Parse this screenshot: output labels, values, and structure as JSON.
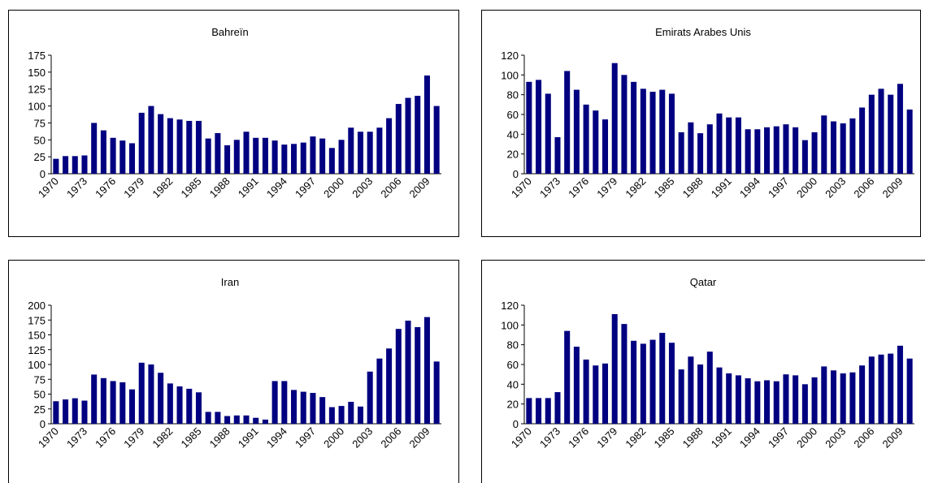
{
  "chart_data": [
    {
      "type": "bar",
      "title": "Bahreïn",
      "color": "#000080",
      "categories": [
        "1970",
        null,
        null,
        "1973",
        null,
        null,
        "1976",
        null,
        null,
        "1979",
        null,
        null,
        "1982",
        null,
        null,
        "1985",
        null,
        null,
        "1988",
        null,
        null,
        "1991",
        null,
        null,
        "1994",
        null,
        null,
        "1997",
        null,
        null,
        "2000",
        null,
        null,
        "2003",
        null,
        null,
        "2006",
        null,
        null,
        "2009",
        null
      ],
      "values": [
        22,
        26,
        26,
        27,
        75,
        64,
        53,
        49,
        45,
        90,
        100,
        88,
        82,
        80,
        78,
        78,
        52,
        60,
        42,
        50,
        62,
        53,
        53,
        49,
        43,
        44,
        46,
        55,
        52,
        38,
        50,
        68,
        62,
        62,
        68,
        82,
        103,
        112,
        115,
        145,
        100
      ],
      "ylim": [
        0,
        175
      ],
      "yticks": [
        0,
        25,
        50,
        75,
        100,
        125,
        150,
        175
      ]
    },
    {
      "type": "bar",
      "title": "Emirats Arabes Unis",
      "color": "#000080",
      "categories": [
        "1970",
        null,
        null,
        "1973",
        null,
        null,
        "1976",
        null,
        null,
        "1979",
        null,
        null,
        "1982",
        null,
        null,
        "1985",
        null,
        null,
        "1988",
        null,
        null,
        "1991",
        null,
        null,
        "1994",
        null,
        null,
        "1997",
        null,
        null,
        "2000",
        null,
        null,
        "2003",
        null,
        null,
        "2006",
        null,
        null,
        "2009",
        null
      ],
      "values": [
        93,
        95,
        81,
        37,
        104,
        85,
        70,
        64,
        55,
        112,
        100,
        93,
        86,
        83,
        85,
        81,
        42,
        52,
        41,
        50,
        61,
        57,
        57,
        45,
        45,
        47,
        48,
        50,
        47,
        34,
        42,
        59,
        53,
        51,
        56,
        67,
        80,
        86,
        80,
        91,
        65
      ],
      "ylim": [
        0,
        120
      ],
      "yticks": [
        0,
        20,
        40,
        60,
        80,
        100,
        120
      ]
    },
    {
      "type": "bar",
      "title": "Iran",
      "color": "#000080",
      "categories": [
        "1970",
        null,
        null,
        "1973",
        null,
        null,
        "1976",
        null,
        null,
        "1979",
        null,
        null,
        "1982",
        null,
        null,
        "1985",
        null,
        null,
        "1988",
        null,
        null,
        "1991",
        null,
        null,
        "1994",
        null,
        null,
        "1997",
        null,
        null,
        "2000",
        null,
        null,
        "2003",
        null,
        null,
        "2006",
        null,
        null,
        "2009",
        null
      ],
      "values": [
        38,
        41,
        43,
        39,
        83,
        77,
        72,
        70,
        58,
        103,
        100,
        86,
        68,
        63,
        59,
        53,
        20,
        20,
        13,
        14,
        14,
        10,
        7,
        72,
        72,
        57,
        54,
        52,
        45,
        28,
        30,
        37,
        29,
        88,
        110,
        127,
        160,
        174,
        163,
        180,
        105
      ],
      "ylim": [
        0,
        200
      ],
      "yticks": [
        0,
        25,
        50,
        75,
        100,
        125,
        150,
        175,
        200
      ]
    },
    {
      "type": "bar",
      "title": "Qatar",
      "color": "#000080",
      "categories": [
        "1970",
        null,
        null,
        "1973",
        null,
        null,
        "1976",
        null,
        null,
        "1979",
        null,
        null,
        "1982",
        null,
        null,
        "1985",
        null,
        null,
        "1988",
        null,
        null,
        "1991",
        null,
        null,
        "1994",
        null,
        null,
        "1997",
        null,
        null,
        "2000",
        null,
        null,
        "2003",
        null,
        null,
        "2006",
        null,
        null,
        "2009",
        null
      ],
      "values": [
        26,
        26,
        26,
        32,
        94,
        78,
        65,
        59,
        61,
        111,
        101,
        84,
        81,
        85,
        92,
        82,
        55,
        68,
        60,
        73,
        57,
        51,
        49,
        46,
        43,
        44,
        43,
        50,
        49,
        40,
        47,
        58,
        54,
        51,
        52,
        59,
        68,
        70,
        71,
        79,
        66
      ],
      "ylim": [
        0,
        120
      ],
      "yticks": [
        0,
        20,
        40,
        60,
        80,
        100,
        120
      ]
    }
  ]
}
